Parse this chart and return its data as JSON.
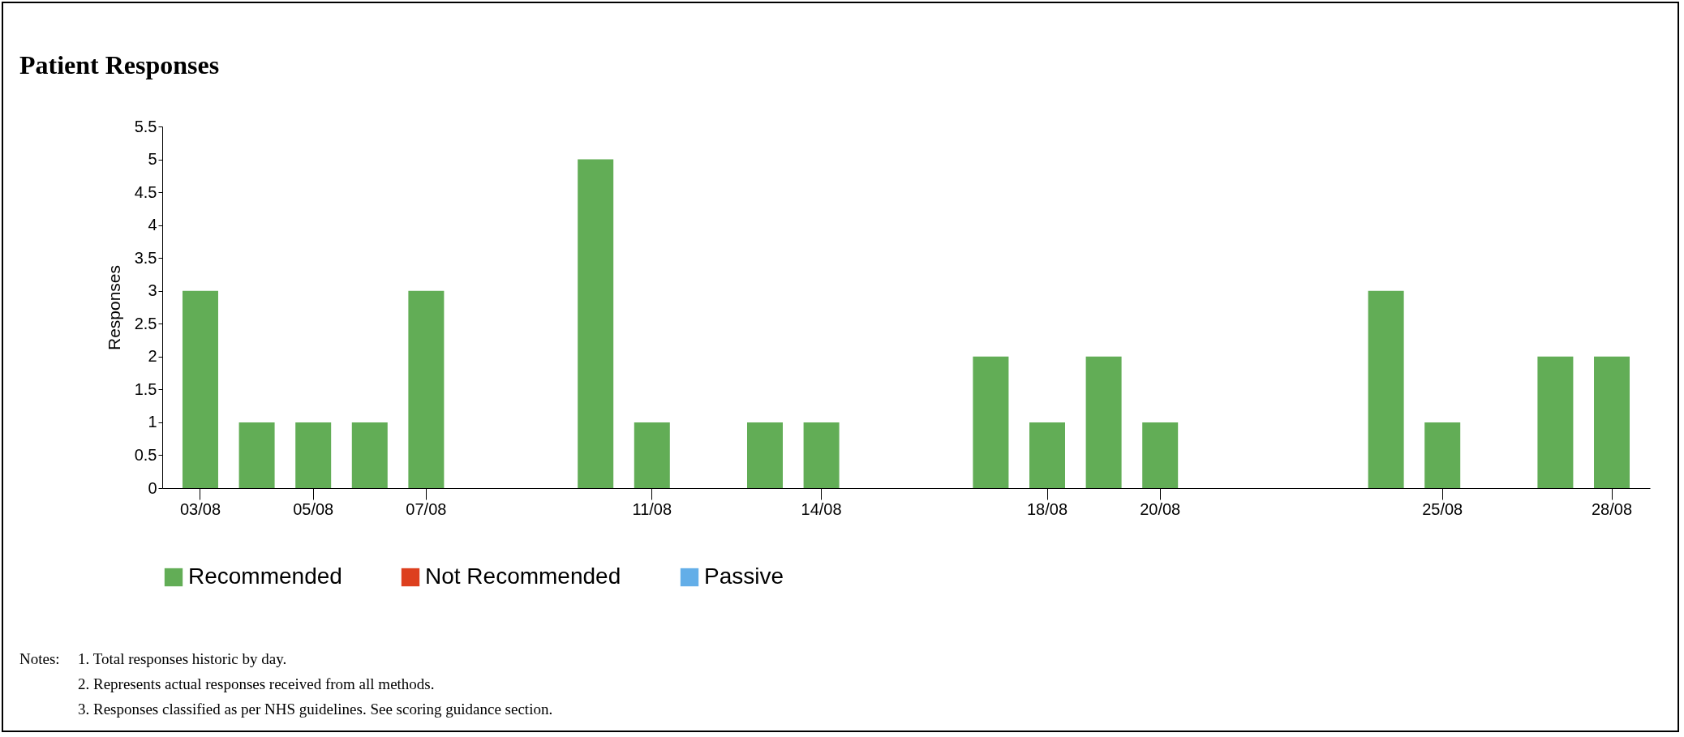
{
  "chart_data": {
    "type": "bar",
    "title": "Patient Responses",
    "ylabel": "Responses",
    "grid": false,
    "legend": "bottom",
    "categories": [
      "03/08",
      null,
      "05/08",
      null,
      "07/08",
      null,
      null,
      null,
      "11/08",
      null,
      null,
      "14/08",
      null,
      null,
      null,
      "18/08",
      null,
      "20/08",
      null,
      null,
      null,
      null,
      "25/08",
      null,
      null,
      "28/08"
    ],
    "series": [
      {
        "name": "Recommended",
        "color": "#62ad56",
        "values": [
          3,
          1,
          1,
          1,
          3,
          0,
          0,
          5,
          1,
          0,
          1,
          1,
          0,
          0,
          2,
          1,
          2,
          1,
          0,
          0,
          0,
          3,
          1,
          0,
          2,
          2
        ]
      },
      {
        "name": "Not Recommended",
        "color": "#dd3f1e",
        "values": [
          0,
          0,
          0,
          0,
          0,
          0,
          0,
          0,
          0,
          0,
          0,
          0,
          0,
          0,
          0,
          0,
          0,
          0,
          0,
          0,
          0,
          0,
          0,
          0,
          0,
          0
        ]
      },
      {
        "name": "Passive",
        "color": "#63aee8",
        "values": [
          0,
          0,
          0,
          0,
          0,
          0,
          0,
          0,
          0,
          0,
          0,
          0,
          0,
          0,
          0,
          0,
          0,
          0,
          0,
          0,
          0,
          0,
          0,
          0,
          0,
          0
        ]
      }
    ],
    "ylim": [
      0,
      5.5
    ],
    "yticks": [
      0,
      0.5,
      1,
      1.5,
      2,
      2.5,
      3,
      3.5,
      4,
      4.5,
      5,
      5.5
    ],
    "annotations": [
      "Notes:",
      "1.  Total responses historic by day.",
      "2.  Represents actual responses received from all methods.",
      "3.  Responses classified as per NHS guidelines. See scoring guidance section."
    ]
  }
}
